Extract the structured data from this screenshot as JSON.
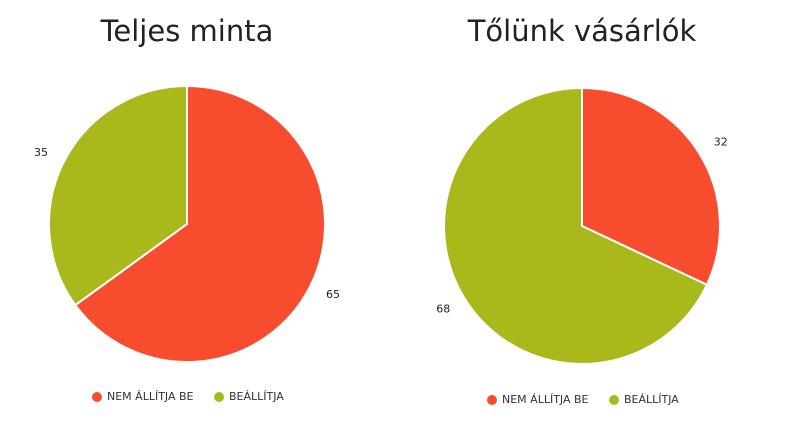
{
  "chart_data": [
    {
      "type": "pie",
      "title": "Teljes minta",
      "categories": [
        "NEM ÁLLÍTJA BE",
        "BEÁLLÍTJA"
      ],
      "values": [
        65,
        35
      ],
      "colors": [
        "#f74c2d",
        "#a9b91b"
      ]
    },
    {
      "type": "pie",
      "title": "Tőlünk vásárlók",
      "categories": [
        "NEM ÁLLÍTJA BE",
        "BEÁLLÍTJA"
      ],
      "values": [
        32,
        68
      ],
      "colors": [
        "#f74c2d",
        "#a9b91b"
      ]
    }
  ]
}
